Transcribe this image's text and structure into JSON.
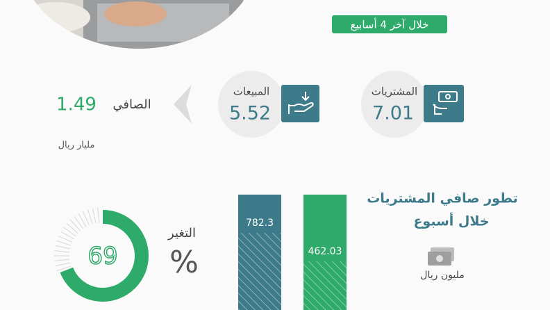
{
  "header": {
    "period": "خلال آخر 4 أسابيع"
  },
  "summary": {
    "purchases": {
      "label": "المشتريات",
      "value": 7.01
    },
    "sales": {
      "label": "المبيعات",
      "value": 5.52
    },
    "net": {
      "label": "الصافي",
      "value": 1.49
    },
    "unit": "مليار ريال"
  },
  "weekly": {
    "title": "تطور صافي المشتريات",
    "subtitle": "خلال أسبوع",
    "unit": "مليون ريال",
    "values": [
      782.3,
      462.03
    ]
  },
  "change": {
    "label": "التغير",
    "symbol": "%",
    "value": 69
  }
}
